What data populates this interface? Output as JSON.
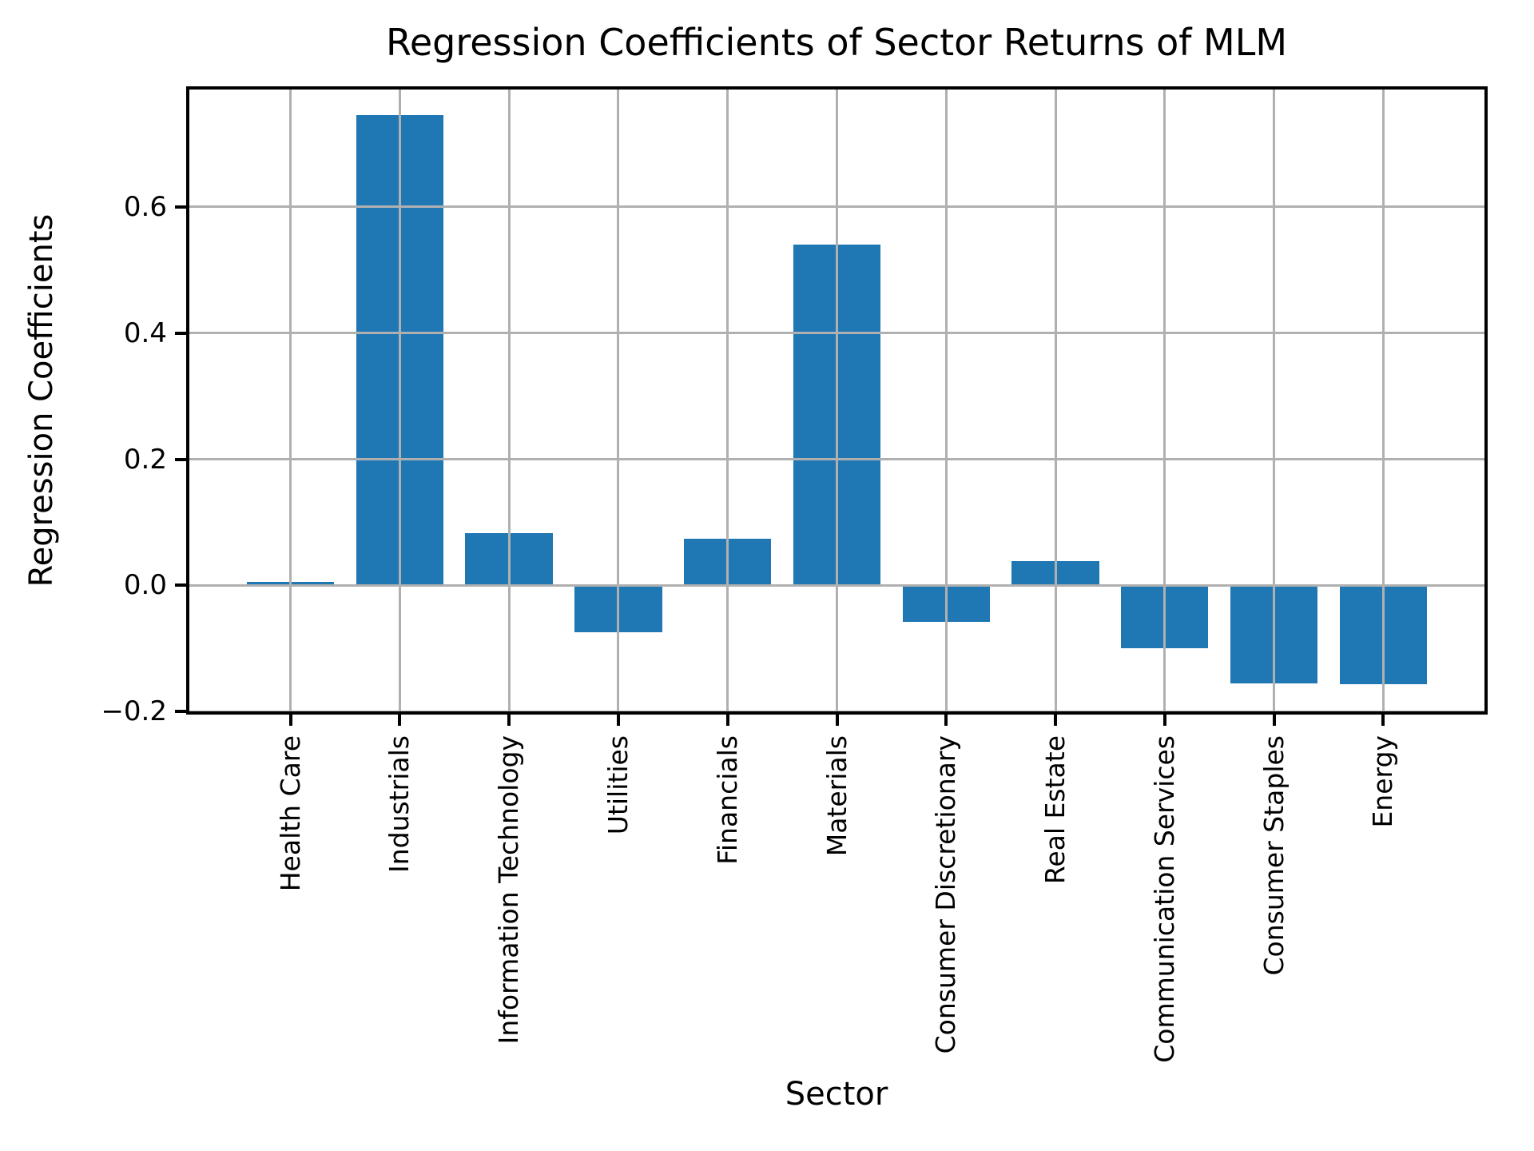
{
  "title": "Regression Coefficients of Sector Returns of MLM",
  "chart_data": {
    "type": "bar",
    "title": "Regression Coefficients of Sector Returns of MLM",
    "xlabel": "Sector",
    "ylabel": "Regression Coefficients",
    "categories": [
      "Health Care",
      "Industrials",
      "Information Technology",
      "Utilities",
      "Financials",
      "Materials",
      "Consumer Discretionary",
      "Real Estate",
      "Communication Services",
      "Consumer Staples",
      "Energy"
    ],
    "values": [
      0.006,
      0.745,
      0.083,
      -0.074,
      0.074,
      0.54,
      -0.058,
      0.038,
      -0.099,
      -0.155,
      -0.156
    ],
    "yticks": [
      -0.2,
      0.0,
      0.2,
      0.4,
      0.6
    ],
    "ytick_labels": [
      "−0.2",
      "0.0",
      "0.2",
      "0.4",
      "0.6"
    ],
    "ylim": [
      -0.202,
      0.788
    ],
    "xlim": [
      -0.94,
      10.94
    ],
    "bar_width_units": 0.8,
    "bar_color": "#1f77b4",
    "grid": true,
    "grid_color": "#b0b0b0",
    "axis_color": "#000000",
    "background_color": "#ffffff",
    "legend": false,
    "x_tick_label_rotation": 90
  }
}
